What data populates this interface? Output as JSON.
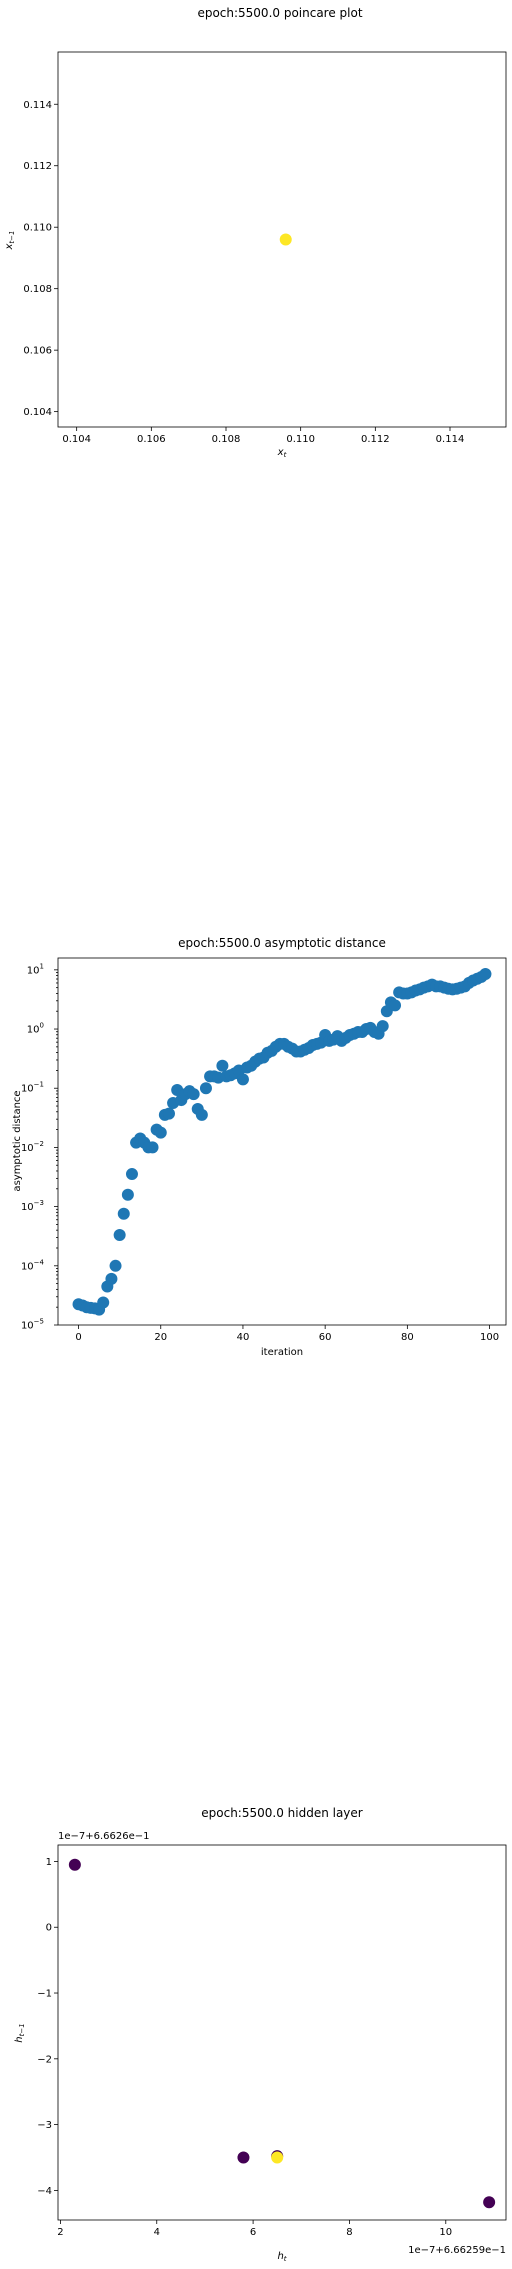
{
  "chart_data": [
    {
      "type": "scatter",
      "title": "epoch:5500.0 poincare plot",
      "xlabel": "x_t",
      "ylabel": "x_{t-1}",
      "xlim": [
        0.1035,
        0.1155
      ],
      "ylim": [
        0.1035,
        0.1157
      ],
      "xticks": [
        0.104,
        0.106,
        0.108,
        0.11,
        0.112,
        0.114
      ],
      "yticks": [
        0.104,
        0.106,
        0.108,
        0.11,
        0.112,
        0.114
      ],
      "tick_precision": 3,
      "colormap": "viridis",
      "marker_size": 6,
      "points": [
        {
          "x": 0.1096,
          "y": 0.1096,
          "color": "#fde725"
        }
      ]
    },
    {
      "type": "scatter",
      "title": "epoch:5500.0 asymptotic distance",
      "xlabel": "iteration",
      "ylabel": "asymptotic distance",
      "xscale": "linear",
      "yscale": "log",
      "xlim": [
        -5,
        104
      ],
      "ylim_log10": [
        -5,
        1.2
      ],
      "xticks": [
        0,
        20,
        40,
        60,
        80,
        100
      ],
      "yticks_exp": [
        -5,
        -4,
        -3,
        -2,
        -1,
        0,
        1
      ],
      "marker_color": "#1f77b4",
      "marker_size": 6,
      "x": [
        0,
        1,
        2,
        3,
        4,
        5,
        6,
        7,
        8,
        9,
        10,
        11,
        12,
        13,
        14,
        15,
        16,
        17,
        18,
        19,
        20,
        21,
        22,
        23,
        24,
        25,
        26,
        27,
        28,
        29,
        30,
        31,
        32,
        33,
        34,
        35,
        36,
        37,
        38,
        39,
        40,
        41,
        42,
        43,
        44,
        45,
        46,
        47,
        48,
        49,
        50,
        51,
        52,
        53,
        54,
        55,
        56,
        57,
        58,
        59,
        60,
        61,
        62,
        63,
        64,
        65,
        66,
        67,
        68,
        69,
        70,
        71,
        72,
        73,
        74,
        75,
        76,
        77,
        78,
        79,
        80,
        81,
        82,
        83,
        84,
        85,
        86,
        87,
        88,
        89,
        90,
        91,
        92,
        93,
        94,
        95,
        96,
        97,
        98,
        99
      ],
      "log10_y": [
        -4.65,
        -4.67,
        -4.7,
        -4.71,
        -4.72,
        -4.74,
        -4.62,
        -4.35,
        -4.22,
        -4.0,
        -3.48,
        -3.12,
        -2.8,
        -2.45,
        -1.92,
        -1.85,
        -1.92,
        -2.0,
        -2.0,
        -1.7,
        -1.75,
        -1.45,
        -1.43,
        -1.25,
        -1.03,
        -1.2,
        -1.1,
        -1.05,
        -1.1,
        -1.35,
        -1.45,
        -1.0,
        -0.8,
        -0.8,
        -0.82,
        -0.62,
        -0.8,
        -0.78,
        -0.75,
        -0.7,
        -0.85,
        -0.65,
        -0.62,
        -0.55,
        -0.5,
        -0.48,
        -0.4,
        -0.37,
        -0.3,
        -0.25,
        -0.25,
        -0.3,
        -0.33,
        -0.38,
        -0.38,
        -0.35,
        -0.32,
        -0.27,
        -0.25,
        -0.23,
        -0.1,
        -0.2,
        -0.18,
        -0.12,
        -0.2,
        -0.15,
        -0.1,
        -0.08,
        -0.05,
        -0.05,
        0.0,
        0.02,
        -0.05,
        -0.08,
        0.05,
        0.3,
        0.45,
        0.4,
        0.62,
        0.6,
        0.6,
        0.62,
        0.65,
        0.67,
        0.7,
        0.72,
        0.75,
        0.72,
        0.72,
        0.7,
        0.68,
        0.67,
        0.68,
        0.7,
        0.72,
        0.78,
        0.82,
        0.85,
        0.88,
        0.93
      ]
    },
    {
      "type": "scatter",
      "title": "epoch:5500.0 hidden layer",
      "xlabel": "h_t",
      "ylabel": "h_{t-1}",
      "x_offset_text": "1e−7+6.66259e−1",
      "y_offset_text": "1e−7+6.6626e−1",
      "xlim": [
        1.95,
        11.25
      ],
      "ylim": [
        -4.45,
        1.25
      ],
      "xticks": [
        2,
        4,
        6,
        8,
        10
      ],
      "yticks": [
        -4,
        -3,
        -2,
        -1,
        0,
        1
      ],
      "colormap": "viridis",
      "marker_size": 6,
      "points": [
        {
          "x": 2.3,
          "y": 0.95,
          "color": "#440154"
        },
        {
          "x": 5.8,
          "y": -3.5,
          "color": "#440154"
        },
        {
          "x": 10.9,
          "y": -4.18,
          "color": "#440154"
        },
        {
          "x": 6.5,
          "y": -3.48,
          "color": "#440154"
        },
        {
          "x": 6.5,
          "y": -3.5,
          "color": "#fde725"
        }
      ]
    }
  ]
}
